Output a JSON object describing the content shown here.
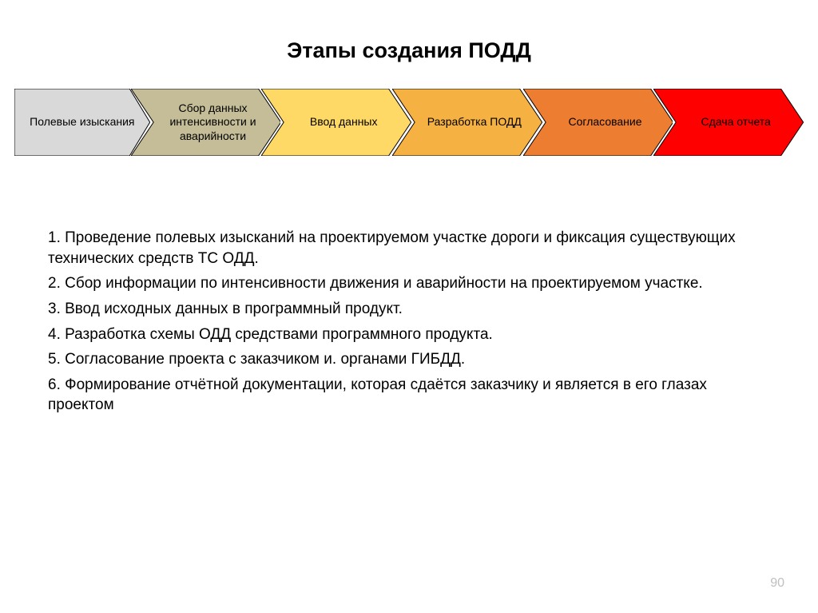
{
  "title": "Этапы создания ПОДД",
  "title_fontsize": 27,
  "chevron": {
    "height": 84,
    "stroke": "#000000",
    "stroke_width": 1,
    "label_fontsize": 14,
    "items": [
      {
        "label": "Полевые изыскания",
        "fill": "#d9d9d9"
      },
      {
        "label": "Сбор данных интенсивности и аварийности",
        "fill": "#c4bd97"
      },
      {
        "label": "Ввод данных",
        "fill": "#ffd966"
      },
      {
        "label": "Разработка ПОДД",
        "fill": "#f5b142"
      },
      {
        "label": "Согласование",
        "fill": "#ed7d31"
      },
      {
        "label": "Сдача отчета",
        "fill": "#ff0000"
      }
    ]
  },
  "body": {
    "fontsize": 19,
    "lines": [
      "1. Проведение полевых изысканий на проектируемом участке дороги и фиксация существующих технических средств ТС ОДД.",
      "2. Сбор информации по интенсивности движения и аварийности на проектируемом участке.",
      "3. Ввод исходных данных в программный продукт.",
      "4. Разработка схемы ОДД средствами программного продукта.",
      "5. Согласование проекта с заказчиком и. органами ГИБДД.",
      "6. Формирование отчётной документации, которая сдаётся заказчику и является в его глазах проектом"
    ]
  },
  "page_number": "90",
  "background_color": "#ffffff"
}
